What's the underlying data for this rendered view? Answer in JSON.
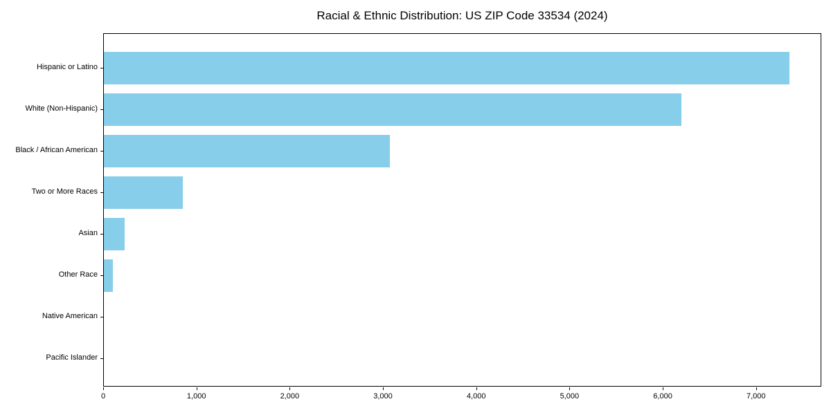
{
  "title": "Racial & Ethnic Distribution: US ZIP Code 33534 (2024)",
  "chart_data": {
    "type": "bar",
    "orientation": "horizontal",
    "title": "Racial & Ethnic Distribution: US ZIP Code 33534 (2024)",
    "categories": [
      "Hispanic or Latino",
      "White (Non-Hispanic)",
      "Black / African American",
      "Two or More Races",
      "Asian",
      "Other Race",
      "Native American",
      "Pacific Islander"
    ],
    "values": [
      7350,
      6190,
      3070,
      850,
      225,
      100,
      0,
      0
    ],
    "xlabel": "",
    "ylabel": "",
    "xlim": [
      0,
      7700
    ],
    "x_ticks": [
      0,
      1000,
      2000,
      3000,
      4000,
      5000,
      6000,
      7000
    ],
    "x_tick_labels": [
      "0",
      "1,000",
      "2,000",
      "3,000",
      "4,000",
      "5,000",
      "6,000",
      "7,000"
    ],
    "grid": false,
    "legend": null,
    "bar_color": "#87CEEB",
    "axis_color": "#000000",
    "text_color": "#000000",
    "background": "#FFFFFF"
  }
}
